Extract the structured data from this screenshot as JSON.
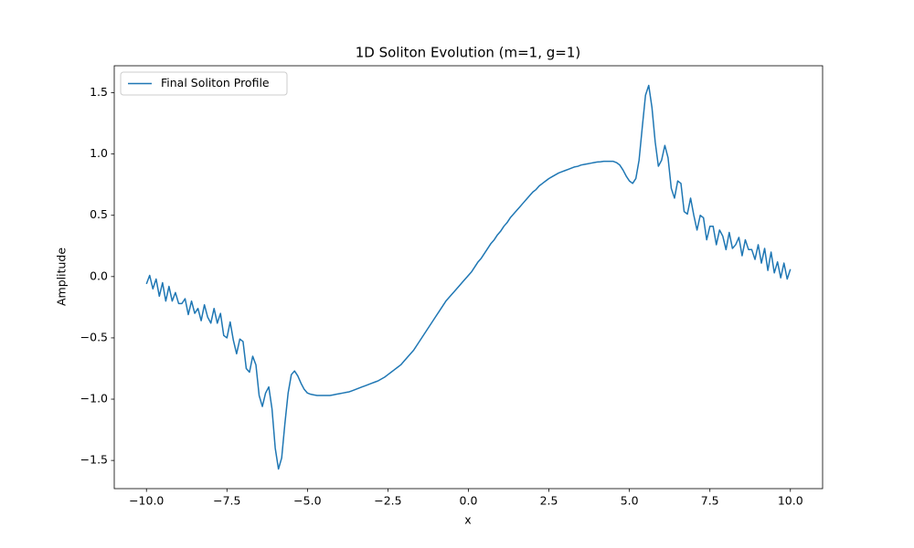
{
  "chart_data": {
    "type": "line",
    "title": "1D Soliton Evolution (m=1, g=1)",
    "xlabel": "x",
    "ylabel": "Amplitude",
    "x": [
      -10,
      -9.9,
      -9.8,
      -9.7,
      -9.6,
      -9.5,
      -9.4,
      -9.3,
      -9.2,
      -9.1,
      -9,
      -8.9,
      -8.8,
      -8.7,
      -8.6,
      -8.5,
      -8.4,
      -8.3,
      -8.2,
      -8.1,
      -8,
      -7.9,
      -7.8,
      -7.7,
      -7.6,
      -7.5,
      -7.4,
      -7.3,
      -7.2,
      -7.1,
      -7,
      -6.9,
      -6.8,
      -6.7,
      -6.6,
      -6.5,
      -6.4,
      -6.3,
      -6.2,
      -6.1,
      -6,
      -5.9,
      -5.8,
      -5.7,
      -5.6,
      -5.5,
      -5.4,
      -5.3,
      -5.2,
      -5.1,
      -5,
      -4.9,
      -4.8,
      -4.7,
      -4.6,
      -4.5,
      -4.4,
      -4.3,
      -4.2,
      -4.1,
      -4,
      -3.9,
      -3.8,
      -3.7,
      -3.6,
      -3.5,
      -3.4,
      -3.3,
      -3.2,
      -3.1,
      -3,
      -2.9,
      -2.8,
      -2.7,
      -2.6,
      -2.5,
      -2.4,
      -2.3,
      -2.2,
      -2.1,
      -2,
      -1.9,
      -1.8,
      -1.7,
      -1.6,
      -1.5,
      -1.4,
      -1.3,
      -1.2,
      -1.1,
      -1,
      -0.9,
      -0.8,
      -0.7,
      -0.6,
      -0.5,
      -0.4,
      -0.3,
      -0.2,
      -0.1,
      0,
      0.1,
      0.2,
      0.3,
      0.4,
      0.5,
      0.6,
      0.7,
      0.8,
      0.9,
      1,
      1.1,
      1.2,
      1.3,
      1.4,
      1.5,
      1.6,
      1.7,
      1.8,
      1.9,
      2,
      2.1,
      2.2,
      2.3,
      2.4,
      2.5,
      2.6,
      2.7,
      2.8,
      2.9,
      3,
      3.1,
      3.2,
      3.3,
      3.4,
      3.5,
      3.6,
      3.7,
      3.8,
      3.9,
      4,
      4.1,
      4.2,
      4.3,
      4.4,
      4.5,
      4.6,
      4.7,
      4.8,
      4.9,
      5,
      5.1,
      5.2,
      5.3,
      5.4,
      5.5,
      5.6,
      5.7,
      5.8,
      5.9,
      6,
      6.1,
      6.2,
      6.3,
      6.4,
      6.5,
      6.6,
      6.7,
      6.8,
      6.9,
      7,
      7.1,
      7.2,
      7.3,
      7.4,
      7.5,
      7.6,
      7.7,
      7.8,
      7.9,
      8,
      8.1,
      8.2,
      8.3,
      8.4,
      8.5,
      8.6,
      8.7,
      8.8,
      8.9,
      9,
      9.1,
      9.2,
      9.3,
      9.4,
      9.5,
      9.6,
      9.7,
      9.8,
      9.9,
      10
    ],
    "series": [
      {
        "name": "Final Soliton Profile",
        "color": "#1f77b4",
        "values": [
          -0.06,
          0.01,
          -0.1,
          -0.02,
          -0.16,
          -0.05,
          -0.2,
          -0.08,
          -0.2,
          -0.13,
          -0.22,
          -0.22,
          -0.18,
          -0.31,
          -0.2,
          -0.3,
          -0.26,
          -0.36,
          -0.23,
          -0.33,
          -0.38,
          -0.26,
          -0.38,
          -0.3,
          -0.48,
          -0.5,
          -0.37,
          -0.52,
          -0.63,
          -0.51,
          -0.53,
          -0.75,
          -0.78,
          -0.65,
          -0.72,
          -0.97,
          -1.06,
          -0.95,
          -0.9,
          -1.08,
          -1.4,
          -1.57,
          -1.48,
          -1.2,
          -0.95,
          -0.8,
          -0.77,
          -0.81,
          -0.87,
          -0.92,
          -0.95,
          -0.96,
          -0.965,
          -0.97,
          -0.97,
          -0.97,
          -0.97,
          -0.97,
          -0.965,
          -0.96,
          -0.955,
          -0.95,
          -0.945,
          -0.94,
          -0.93,
          -0.92,
          -0.91,
          -0.9,
          -0.89,
          -0.88,
          -0.87,
          -0.86,
          -0.85,
          -0.835,
          -0.82,
          -0.8,
          -0.78,
          -0.76,
          -0.74,
          -0.72,
          -0.69,
          -0.66,
          -0.63,
          -0.6,
          -0.56,
          -0.52,
          -0.48,
          -0.44,
          -0.4,
          -0.36,
          -0.32,
          -0.28,
          -0.24,
          -0.2,
          -0.17,
          -0.14,
          -0.11,
          -0.08,
          -0.05,
          -0.02,
          0.01,
          0.04,
          0.08,
          0.12,
          0.15,
          0.19,
          0.23,
          0.27,
          0.3,
          0.34,
          0.37,
          0.41,
          0.44,
          0.48,
          0.51,
          0.54,
          0.57,
          0.6,
          0.63,
          0.66,
          0.69,
          0.71,
          0.74,
          0.76,
          0.78,
          0.8,
          0.815,
          0.83,
          0.845,
          0.855,
          0.865,
          0.875,
          0.885,
          0.895,
          0.9,
          0.91,
          0.915,
          0.92,
          0.925,
          0.93,
          0.935,
          0.937,
          0.94,
          0.94,
          0.94,
          0.94,
          0.93,
          0.91,
          0.87,
          0.82,
          0.78,
          0.76,
          0.8,
          0.95,
          1.22,
          1.48,
          1.56,
          1.38,
          1.1,
          0.9,
          0.95,
          1.07,
          0.97,
          0.72,
          0.64,
          0.78,
          0.76,
          0.53,
          0.51,
          0.64,
          0.5,
          0.38,
          0.5,
          0.48,
          0.3,
          0.41,
          0.41,
          0.26,
          0.38,
          0.33,
          0.22,
          0.36,
          0.23,
          0.26,
          0.32,
          0.17,
          0.3,
          0.22,
          0.22,
          0.14,
          0.26,
          0.11,
          0.23,
          0.05,
          0.2,
          0.03,
          0.12,
          -0.01,
          0.11,
          -0.02,
          0.06
        ]
      }
    ],
    "xlim": [
      -11,
      11
    ],
    "ylim": [
      -1.73,
      1.72
    ],
    "xticks": [
      {
        "value": -10,
        "label": "−10.0"
      },
      {
        "value": -7.5,
        "label": "−7.5"
      },
      {
        "value": -5,
        "label": "−5.0"
      },
      {
        "value": -2.5,
        "label": "−2.5"
      },
      {
        "value": 0,
        "label": "0.0"
      },
      2.5,
      {
        "value": 5,
        "label": "5.0"
      },
      7.5,
      {
        "value": 10,
        "label": "10.0"
      }
    ],
    "yticks": [
      {
        "value": -1.5,
        "label": "−1.5"
      },
      {
        "value": -1,
        "label": "−1.0"
      },
      {
        "value": -0.5,
        "label": "−0.5"
      },
      {
        "value": 0,
        "label": "0.0"
      },
      0.5,
      {
        "value": 1,
        "label": "1.0"
      },
      1.5
    ],
    "legend": "upper left"
  }
}
